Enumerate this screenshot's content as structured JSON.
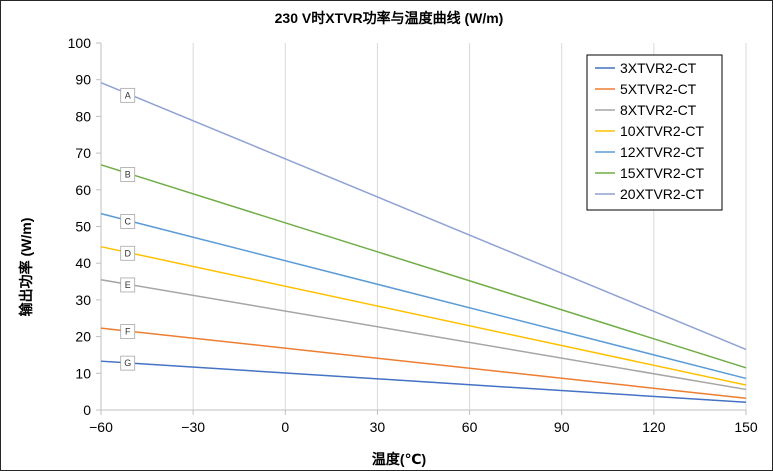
{
  "chart_data": {
    "type": "line",
    "title": "230 V时XTVR功率与温度曲线 (W/m)",
    "xlabel": "温度(℃)",
    "ylabel": "输出功率 (W/m)",
    "xlim": [
      -60,
      150
    ],
    "ylim": [
      0,
      100
    ],
    "xticks": [
      -60,
      -30,
      0,
      30,
      60,
      90,
      120,
      150
    ],
    "xtick_labels": [
      "−60",
      "−30",
      "0",
      "30",
      "60",
      "90",
      "120",
      "150"
    ],
    "yticks": [
      0,
      10,
      20,
      30,
      40,
      50,
      60,
      70,
      80,
      90,
      100
    ],
    "grid": "vertical",
    "legend_position": "top-right",
    "series": [
      {
        "name": "3XTVR2-CT",
        "color": "#4472c4",
        "tag": "G",
        "x": [
          -60,
          150
        ],
        "y": [
          13.3,
          2.1
        ]
      },
      {
        "name": "5XTVR2-CT",
        "color": "#ed7d31",
        "tag": "F",
        "x": [
          -60,
          150
        ],
        "y": [
          22.3,
          3.2
        ]
      },
      {
        "name": "8XTVR2-CT",
        "color": "#a5a5a5",
        "tag": "E",
        "x": [
          -60,
          150
        ],
        "y": [
          35.5,
          5.6
        ]
      },
      {
        "name": "10XTVR2-CT",
        "color": "#ffc000",
        "tag": "D",
        "x": [
          -60,
          150
        ],
        "y": [
          44.5,
          6.8
        ]
      },
      {
        "name": "12XTVR2-CT",
        "color": "#5b9bd5",
        "tag": "C",
        "x": [
          -60,
          150
        ],
        "y": [
          53.5,
          8.6
        ]
      },
      {
        "name": "15XTVR2-CT",
        "color": "#70ad47",
        "tag": "B",
        "x": [
          -60,
          150
        ],
        "y": [
          66.8,
          11.5
        ]
      },
      {
        "name": "20XTVR2-CT",
        "color": "#8fa2d4",
        "tag": "A",
        "x": [
          -60,
          150
        ],
        "y": [
          89.2,
          16.5
        ]
      }
    ]
  }
}
